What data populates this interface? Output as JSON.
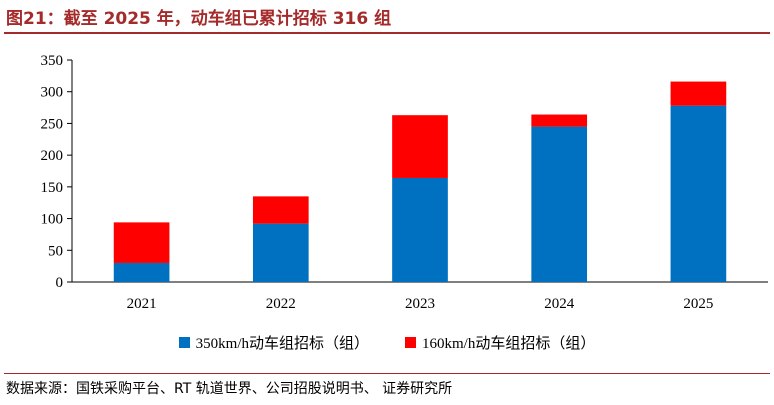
{
  "title": "图21：截至 2025 年，动车组已累计招标 316 组",
  "source": "数据来源：国铁采购平台、RT 轨道世界、公司招股说明书、 证券研究所",
  "colors": {
    "series_350": "#0070c0",
    "series_160": "#ff0000",
    "accent": "#a52a2a"
  },
  "chart_data": {
    "type": "bar",
    "stacked": true,
    "categories": [
      "2021",
      "2022",
      "2023",
      "2024",
      "2025"
    ],
    "series": [
      {
        "name": "350km/h动车组招标（组）",
        "values": [
          30,
          92,
          164,
          245,
          278
        ]
      },
      {
        "name": "160km/h动车组招标（组）",
        "values": [
          64,
          43,
          99,
          19,
          38
        ]
      }
    ],
    "ylim": [
      0,
      350
    ],
    "yticks": [
      0,
      50,
      100,
      150,
      200,
      250,
      300,
      350
    ],
    "grid": false,
    "legend_position": "bottom"
  }
}
